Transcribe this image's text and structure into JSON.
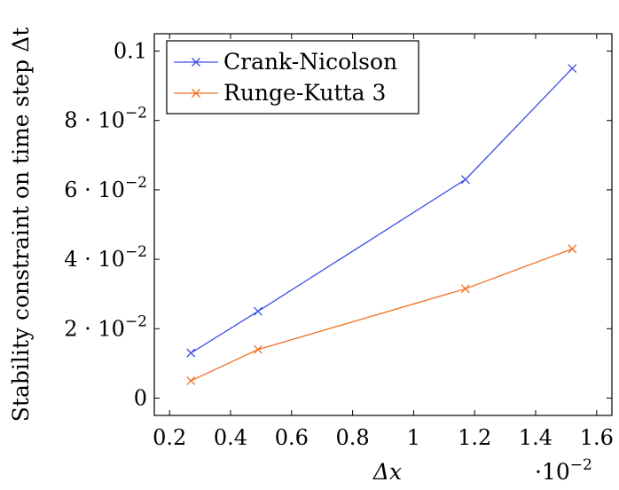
{
  "chart_data": {
    "type": "line",
    "title": "",
    "xlabel": "Δx",
    "ylabel": "Stability constraint on time step Δt",
    "x_multiplier": "·10",
    "x_multiplier_exp": "−2",
    "xlim": [
      0.15,
      1.65
    ],
    "ylim": [
      -0.005,
      0.105
    ],
    "xticks": [
      0.2,
      0.4,
      0.6,
      0.8,
      1,
      1.2,
      1.4,
      1.6
    ],
    "xtick_labels": [
      "0.2",
      "0.4",
      "0.6",
      "0.8",
      "1",
      "1.2",
      "1.4",
      "1.6"
    ],
    "yticks": [
      0,
      0.02,
      0.04,
      0.06,
      0.08,
      0.1
    ],
    "ytick_labels": [
      {
        "base": "0",
        "exp": ""
      },
      {
        "base": "2 · 10",
        "exp": "−2"
      },
      {
        "base": "4 · 10",
        "exp": "−2"
      },
      {
        "base": "6 · 10",
        "exp": "−2"
      },
      {
        "base": "8 · 10",
        "exp": "−2"
      },
      {
        "base": "0.1",
        "exp": ""
      }
    ],
    "grid": false,
    "legend_position": "top-left",
    "series": [
      {
        "name": "Crank-Nicolson",
        "color": "#3b4ee6",
        "marker": "x",
        "x": [
          0.27,
          0.49,
          1.17,
          1.52
        ],
        "y": [
          0.013,
          0.025,
          0.063,
          0.095
        ]
      },
      {
        "name": "Runge-Kutta 3",
        "color": "#f07020",
        "marker": "x",
        "x": [
          0.27,
          0.49,
          1.17,
          1.52
        ],
        "y": [
          0.005,
          0.014,
          0.0315,
          0.043
        ]
      }
    ]
  }
}
